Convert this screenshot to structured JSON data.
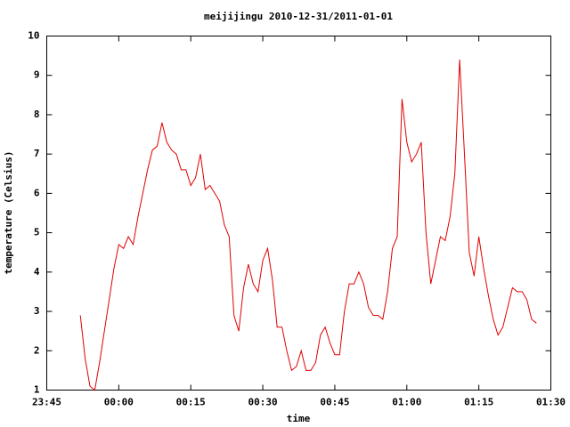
{
  "chart_data": {
    "type": "line",
    "title": "meijijingu 2010-12-31/2011-01-01",
    "x_label": "time",
    "y_label": "temperature (Celsius)",
    "color": "#e00000",
    "x": [
      "23:52",
      "23:53",
      "23:54",
      "23:55",
      "23:56",
      "23:57",
      "23:58",
      "23:59",
      "00:00",
      "00:01",
      "00:02",
      "00:03",
      "00:04",
      "00:05",
      "00:06",
      "00:07",
      "00:08",
      "00:09",
      "00:10",
      "00:11",
      "00:12",
      "00:13",
      "00:14",
      "00:15",
      "00:16",
      "00:17",
      "00:18",
      "00:19",
      "00:20",
      "00:21",
      "00:22",
      "00:23",
      "00:24",
      "00:25",
      "00:26",
      "00:27",
      "00:28",
      "00:29",
      "00:30",
      "00:31",
      "00:32",
      "00:33",
      "00:34",
      "00:35",
      "00:36",
      "00:37",
      "00:38",
      "00:39",
      "00:40",
      "00:41",
      "00:42",
      "00:43",
      "00:44",
      "00:45",
      "00:46",
      "00:47",
      "00:48",
      "00:49",
      "00:50",
      "00:51",
      "00:52",
      "00:53",
      "00:54",
      "00:55",
      "00:56",
      "00:57",
      "00:58",
      "00:59",
      "01:00",
      "01:01",
      "01:02",
      "01:03",
      "01:04",
      "01:05",
      "01:06",
      "01:07",
      "01:08",
      "01:09",
      "01:10",
      "01:11",
      "01:12",
      "01:13",
      "01:14",
      "01:15",
      "01:16",
      "01:17",
      "01:18",
      "01:19",
      "01:20",
      "01:21",
      "01:22",
      "01:23",
      "01:24",
      "01:25",
      "01:26",
      "01:27"
    ],
    "values": [
      2.9,
      1.8,
      1.1,
      1.0,
      1.7,
      2.5,
      3.3,
      4.1,
      4.7,
      4.6,
      4.9,
      4.7,
      5.4,
      6.0,
      6.6,
      7.1,
      7.2,
      7.8,
      7.3,
      7.1,
      7.0,
      6.6,
      6.6,
      6.2,
      6.4,
      7.0,
      6.1,
      6.2,
      6.0,
      5.8,
      5.2,
      4.9,
      2.9,
      2.5,
      3.6,
      4.2,
      3.7,
      3.5,
      4.3,
      4.6,
      3.8,
      2.6,
      2.6,
      2.0,
      1.5,
      1.6,
      2.0,
      1.5,
      1.5,
      1.7,
      2.4,
      2.6,
      2.2,
      1.9,
      1.9,
      3.0,
      3.7,
      3.7,
      4.0,
      3.7,
      3.1,
      2.9,
      2.9,
      2.8,
      3.5,
      4.6,
      4.9,
      8.4,
      7.3,
      6.8,
      7.0,
      7.3,
      5.0,
      3.7,
      4.3,
      4.9,
      4.8,
      5.4,
      6.5,
      9.4,
      7.0,
      4.5,
      3.9,
      4.9,
      4.1,
      3.4,
      2.8,
      2.4,
      2.6,
      3.1,
      3.6,
      3.5,
      3.5,
      3.3,
      2.8,
      2.7
    ],
    "xlim": [
      "23:45",
      "01:30"
    ],
    "xticks": [
      "23:45",
      "00:00",
      "00:15",
      "00:30",
      "00:45",
      "01:00",
      "01:15",
      "01:30"
    ],
    "ylim": [
      1,
      10
    ],
    "yticks": [
      1,
      2,
      3,
      4,
      5,
      6,
      7,
      8,
      9,
      10
    ]
  }
}
